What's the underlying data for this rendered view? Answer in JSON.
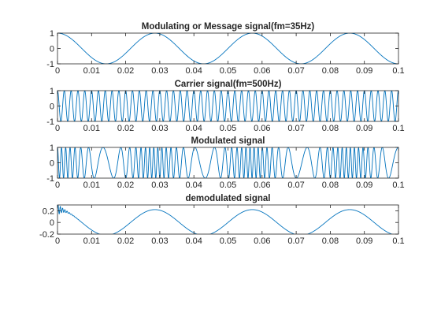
{
  "figure": {
    "background": "#ffffff",
    "line_color": "#0072bd",
    "axes_color": "#262626"
  },
  "chart_data": [
    {
      "type": "line",
      "title": "Modulating or Message signal(fm=35Hz)",
      "function": "cos",
      "amplitude": 1,
      "frequency_hz": 35,
      "xlim": [
        0,
        0.1
      ],
      "ylim": [
        -1,
        1
      ],
      "xticks": [
        0,
        0.01,
        0.02,
        0.03,
        0.04,
        0.05,
        0.06,
        0.07,
        0.08,
        0.09,
        0.1
      ],
      "xtick_labels": [
        "0",
        "0.01",
        "0.02",
        "0.03",
        "0.04",
        "0.05",
        "0.06",
        "0.07",
        "0.08",
        "0.09",
        "0.1"
      ],
      "yticks": [
        1,
        0,
        -1
      ],
      "ytick_labels": [
        "1",
        "0",
        "-1"
      ],
      "xlabel": "",
      "ylabel": "",
      "grid": false
    },
    {
      "type": "line",
      "title": "Carrier signal(fm=500Hz)",
      "function": "cos",
      "amplitude": 1,
      "frequency_hz": 500,
      "xlim": [
        0,
        0.1
      ],
      "ylim": [
        -1,
        1
      ],
      "xticks": [
        0,
        0.01,
        0.02,
        0.03,
        0.04,
        0.05,
        0.06,
        0.07,
        0.08,
        0.09,
        0.1
      ],
      "xtick_labels": [
        "0",
        "0.01",
        "0.02",
        "0.03",
        "0.04",
        "0.05",
        "0.06",
        "0.07",
        "0.08",
        "0.09",
        "0.1"
      ],
      "yticks": [
        1,
        0,
        -1
      ],
      "ytick_labels": [
        "1",
        "0",
        "-1"
      ],
      "xlabel": "",
      "ylabel": "",
      "grid": false
    },
    {
      "type": "line",
      "title": "Modulated signal",
      "function": "fm",
      "amplitude": 1,
      "carrier_hz": 500,
      "message_hz": 35,
      "modulation_index": 10,
      "xlim": [
        0,
        0.1
      ],
      "ylim": [
        -1,
        1
      ],
      "xticks": [
        0,
        0.01,
        0.02,
        0.03,
        0.04,
        0.05,
        0.06,
        0.07,
        0.08,
        0.09,
        0.1
      ],
      "xtick_labels": [
        "0",
        "0.01",
        "0.02",
        "0.03",
        "0.04",
        "0.05",
        "0.06",
        "0.07",
        "0.08",
        "0.09",
        "0.1"
      ],
      "yticks": [
        1,
        0,
        -1
      ],
      "ytick_labels": [
        "1",
        "0",
        "-1"
      ],
      "xlabel": "",
      "ylabel": "",
      "grid": false
    },
    {
      "type": "line",
      "title": "demodulated signal",
      "function": "cos",
      "amplitude": 0.22,
      "frequency_hz": 35,
      "startup_transient": {
        "amplitude": 0.1,
        "frequency_hz": 1500,
        "decay_s": 0.0015
      },
      "xlim": [
        0,
        0.1
      ],
      "ylim": [
        -0.2,
        0.3
      ],
      "xticks": [
        0,
        0.01,
        0.02,
        0.03,
        0.04,
        0.05,
        0.06,
        0.07,
        0.08,
        0.09,
        0.1
      ],
      "xtick_labels": [
        "0",
        "0.01",
        "0.02",
        "0.03",
        "0.04",
        "0.05",
        "0.06",
        "0.07",
        "0.08",
        "0.09",
        "0.1"
      ],
      "yticks": [
        0.2,
        0,
        -0.2
      ],
      "ytick_labels": [
        "0.2",
        "0",
        "-0.2"
      ],
      "xlabel": "",
      "ylabel": "",
      "grid": false
    }
  ]
}
